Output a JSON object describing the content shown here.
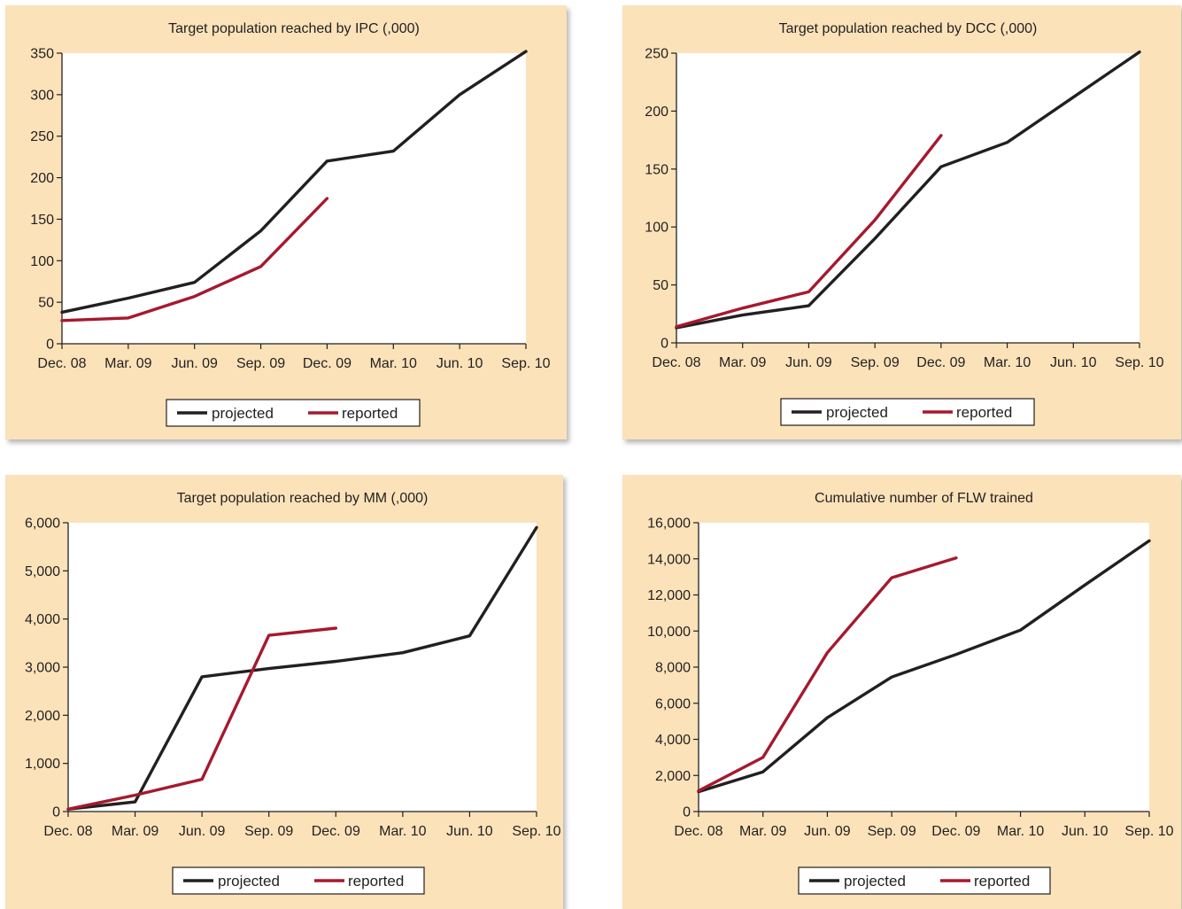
{
  "colors": {
    "projected": "#231f20",
    "reported": "#a6192e",
    "panel_bg": "#fbe2b9"
  },
  "legend": {
    "projected": "projected",
    "reported": "reported"
  },
  "chart_data": [
    {
      "type": "line",
      "title": "Target population reached by IPC (,000)",
      "categories": [
        "Dec. 08",
        "Mar. 09",
        "Jun. 09",
        "Sep. 09",
        "Dec. 09",
        "Mar. 10",
        "Jun. 10",
        "Sep. 10"
      ],
      "ylim": [
        0,
        350
      ],
      "yticks": [
        0,
        50,
        100,
        150,
        200,
        250,
        300,
        350
      ],
      "ytick_labels": [
        "0",
        "50",
        "100",
        "150",
        "200",
        "250",
        "300",
        "350"
      ],
      "series": [
        {
          "name": "projected",
          "points": [
            [
              0,
              38
            ],
            [
              1,
              55
            ],
            [
              2,
              74
            ],
            [
              3,
              136
            ],
            [
              4,
              220
            ],
            [
              5,
              232
            ],
            [
              6,
              300
            ],
            [
              7,
              352
            ]
          ]
        },
        {
          "name": "reported",
          "points": [
            [
              0,
              28
            ],
            [
              1,
              31
            ],
            [
              2,
              57
            ],
            [
              3,
              93
            ],
            [
              4,
              175
            ]
          ]
        }
      ]
    },
    {
      "type": "line",
      "title": "Target population reached by DCC (,000)",
      "categories": [
        "Dec. 08",
        "Mar. 09",
        "Jun. 09",
        "Sep. 09",
        "Dec. 09",
        "Mar. 10",
        "Jun. 10",
        "Sep. 10"
      ],
      "ylim": [
        0,
        250
      ],
      "yticks": [
        0,
        50,
        100,
        150,
        200,
        250
      ],
      "ytick_labels": [
        "0",
        "50",
        "100",
        "150",
        "200",
        "250"
      ],
      "series": [
        {
          "name": "projected",
          "points": [
            [
              0,
              13
            ],
            [
              1,
              24
            ],
            [
              2,
              32
            ],
            [
              3,
              90
            ],
            [
              4,
              152
            ],
            [
              5,
              173
            ],
            [
              6,
              212
            ],
            [
              7,
              251
            ]
          ]
        },
        {
          "name": "reported",
          "points": [
            [
              0,
              14
            ],
            [
              1,
              30
            ],
            [
              2,
              44
            ],
            [
              3,
              106
            ],
            [
              4,
              179
            ]
          ]
        }
      ]
    },
    {
      "type": "line",
      "title": "Target population reached by MM (,000)",
      "categories": [
        "Dec. 08",
        "Mar. 09",
        "Jun. 09",
        "Sep. 09",
        "Dec. 09",
        "Mar. 10",
        "Jun. 10",
        "Sep. 10"
      ],
      "ylim": [
        0,
        6000
      ],
      "yticks": [
        0,
        1000,
        2000,
        3000,
        4000,
        5000,
        6000
      ],
      "ytick_labels": [
        "0",
        "1,000",
        "2,000",
        "3,000",
        "4,000",
        "5,000",
        "6,000"
      ],
      "series": [
        {
          "name": "projected",
          "points": [
            [
              0,
              50
            ],
            [
              1,
              200
            ],
            [
              2,
              2800
            ],
            [
              3,
              2970
            ],
            [
              4,
              3120
            ],
            [
              5,
              3300
            ],
            [
              6,
              3650
            ],
            [
              7,
              5900
            ]
          ]
        },
        {
          "name": "reported",
          "points": [
            [
              0,
              50
            ],
            [
              1,
              340
            ],
            [
              2,
              670
            ],
            [
              3,
              3660
            ],
            [
              4,
              3810
            ]
          ]
        }
      ]
    },
    {
      "type": "line",
      "title": "Cumulative number of FLW trained",
      "categories": [
        "Dec. 08",
        "Mar. 09",
        "Jun. 09",
        "Sep. 09",
        "Dec. 09",
        "Mar. 10",
        "Jun. 10",
        "Sep. 10"
      ],
      "ylim": [
        0,
        16000
      ],
      "yticks": [
        0,
        2000,
        4000,
        6000,
        8000,
        10000,
        12000,
        14000,
        16000
      ],
      "ytick_labels": [
        "0",
        "2,000",
        "4,000",
        "6,000",
        "8,000",
        "10,000",
        "12,000",
        "14,000",
        "16,000"
      ],
      "series": [
        {
          "name": "projected",
          "points": [
            [
              0,
              1100
            ],
            [
              1,
              2200
            ],
            [
              2,
              5200
            ],
            [
              3,
              7450
            ],
            [
              4,
              8700
            ],
            [
              5,
              10050
            ],
            [
              6,
              12550
            ],
            [
              7,
              15000
            ]
          ]
        },
        {
          "name": "reported",
          "points": [
            [
              0,
              1150
            ],
            [
              1,
              3000
            ],
            [
              2,
              8800
            ],
            [
              3,
              12950
            ],
            [
              4,
              14050
            ]
          ]
        }
      ]
    }
  ]
}
